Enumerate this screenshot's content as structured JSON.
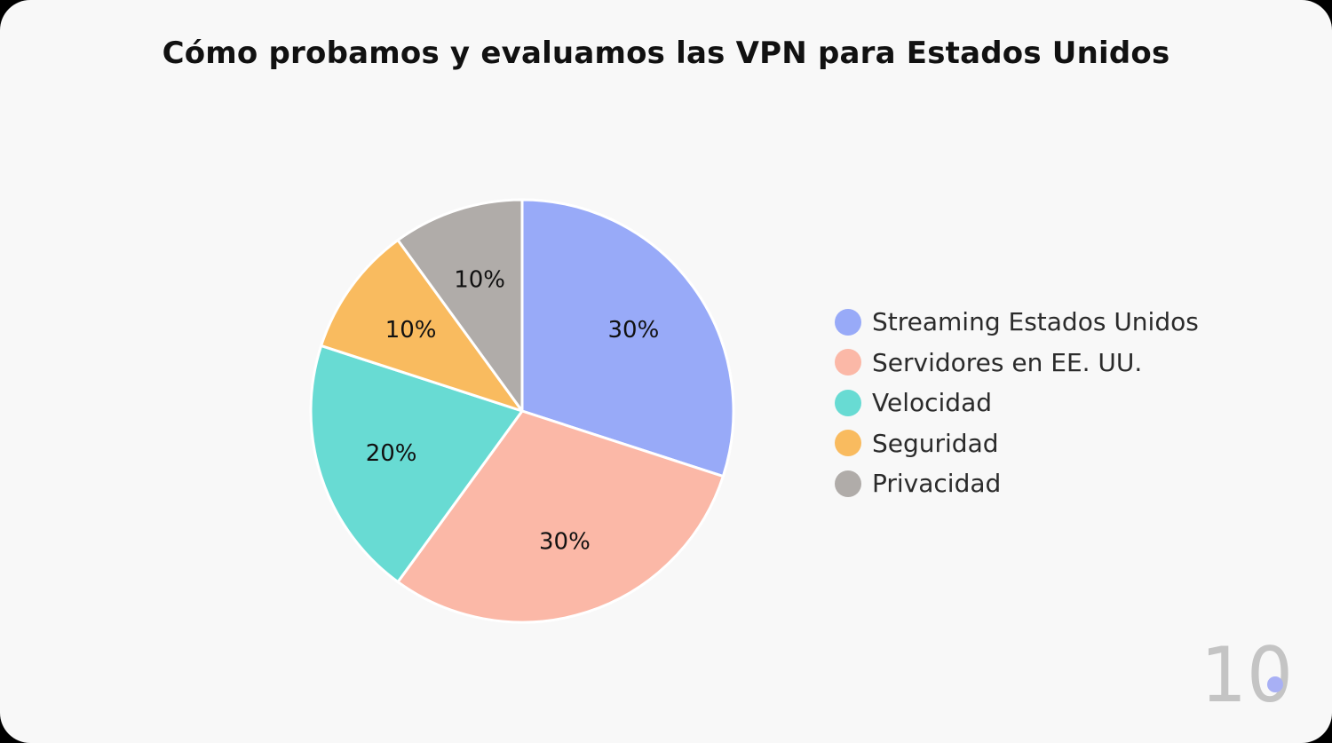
{
  "title": "Cómo probamos y evaluamos las VPN para Estados Unidos",
  "chart_data": {
    "type": "pie",
    "title": "Cómo probamos y evaluamos las VPN para Estados Unidos",
    "legend_position": "right",
    "slices": [
      {
        "name": "Streaming Estados Unidos",
        "value": 30,
        "label": "30%",
        "color": "#98aaf8"
      },
      {
        "name": "Servidores en EE. UU.",
        "value": 30,
        "label": "30%",
        "color": "#fbb8a7"
      },
      {
        "name": "Velocidad",
        "value": 20,
        "label": "20%",
        "color": "#68dbd3"
      },
      {
        "name": "Seguridad",
        "value": 10,
        "label": "10%",
        "color": "#f9bb5f"
      },
      {
        "name": "Privacidad",
        "value": 10,
        "label": "10%",
        "color": "#b0aca9"
      }
    ]
  },
  "logo": {
    "text": "10",
    "color": "#c4c4c4",
    "accent_color": "#a8b0f5",
    "icon": "logo-icon"
  }
}
